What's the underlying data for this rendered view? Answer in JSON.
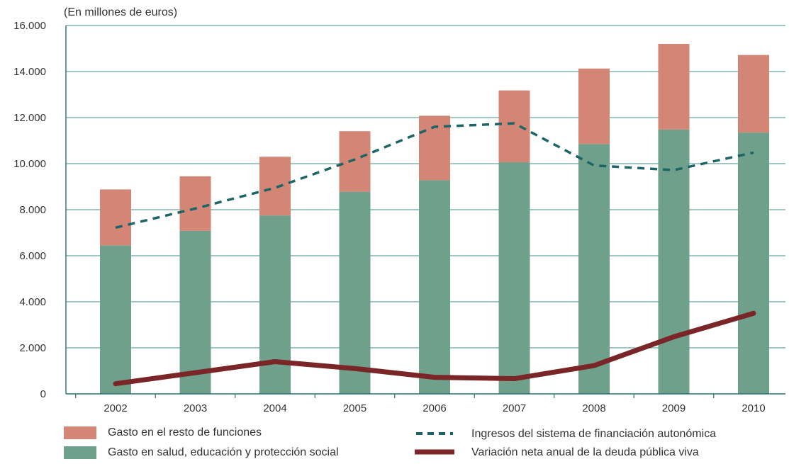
{
  "chart_data": {
    "type": "bar",
    "stacked": true,
    "unit_label": "(En millones de euros)",
    "categories": [
      "2002",
      "2003",
      "2004",
      "2005",
      "2006",
      "2007",
      "2008",
      "2009",
      "2010"
    ],
    "series": [
      {
        "name": "Gasto en salud, educación y protección social",
        "kind": "bar",
        "color": "#6fa08b",
        "values": [
          6450,
          7080,
          7750,
          8780,
          9280,
          10060,
          10850,
          11480,
          11350
        ]
      },
      {
        "name": "Gasto en el resto de funciones",
        "kind": "bar",
        "color": "#d48676",
        "values": [
          2430,
          2370,
          2550,
          2630,
          2800,
          3120,
          3280,
          3720,
          3370
        ]
      },
      {
        "name": "Ingresos del sistema de financiación autonómica",
        "kind": "line",
        "style": "dashed",
        "color": "#1c6466",
        "values": [
          7220,
          8050,
          8950,
          10180,
          11600,
          11750,
          9920,
          9720,
          10480
        ]
      },
      {
        "name": "Variación neta anual de la deuda pública viva",
        "kind": "line",
        "style": "solid",
        "color": "#7a2527",
        "values": [
          440,
          920,
          1400,
          1100,
          720,
          660,
          1230,
          2480,
          3500
        ]
      }
    ],
    "ylim": [
      0,
      16000
    ],
    "yticks": [
      0,
      2000,
      4000,
      6000,
      8000,
      10000,
      12000,
      14000,
      16000
    ],
    "ytick_labels": [
      "0",
      "2.000",
      "4.000",
      "6.000",
      "8.000",
      "10.000",
      "12.000",
      "14.000",
      "16.000"
    ],
    "grid": true,
    "legend_position": "bottom"
  }
}
